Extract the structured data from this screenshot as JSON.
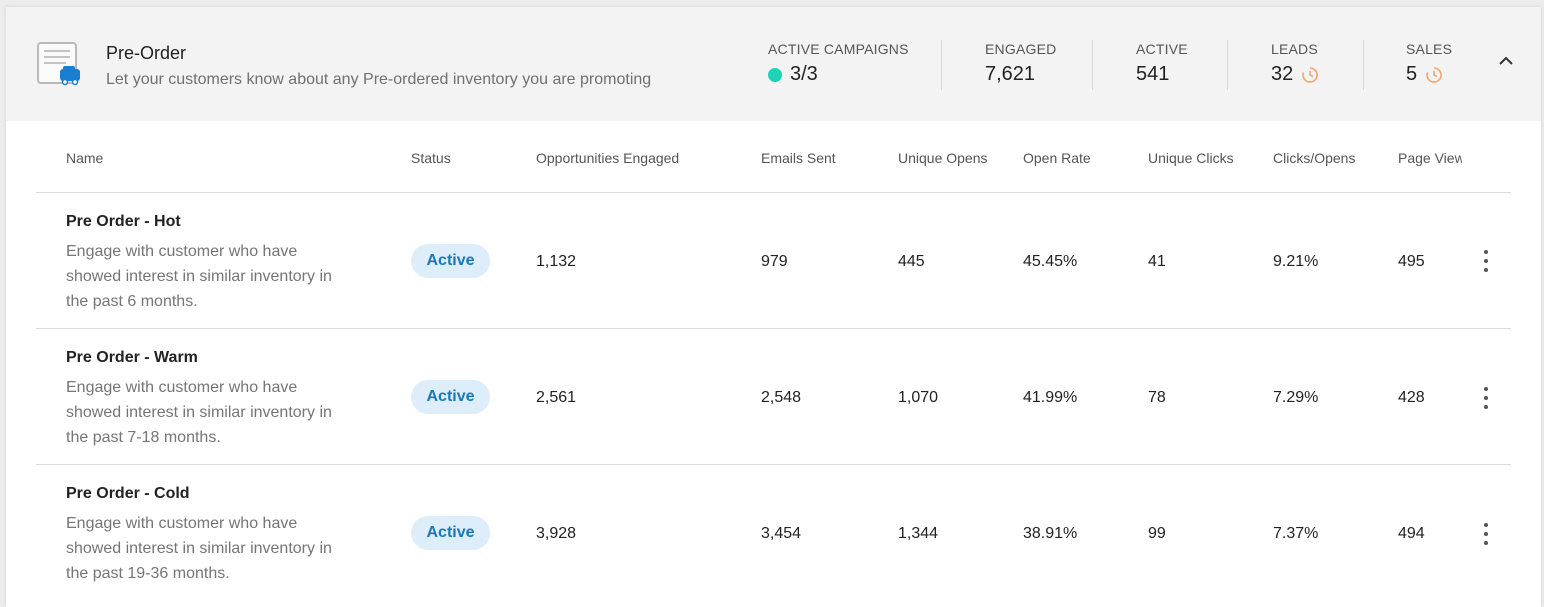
{
  "header": {
    "title": "Pre-Order",
    "subtitle": "Let your customers know about any Pre-ordered inventory you are promoting",
    "stats": {
      "active_campaigns": {
        "label": "ACTIVE CAMPAIGNS",
        "value": "3/3"
      },
      "engaged": {
        "label": "ENGAGED",
        "value": "7,621"
      },
      "active": {
        "label": "ACTIVE",
        "value": "541"
      },
      "leads": {
        "label": "LEADS",
        "value": "32"
      },
      "sales": {
        "label": "SALES",
        "value": "5"
      }
    }
  },
  "table": {
    "columns": [
      "Name",
      "Status",
      "Opportunities Engaged",
      "Emails Sent",
      "Unique Opens",
      "Open Rate",
      "Unique Clicks",
      "Clicks/Opens",
      "Page Views"
    ],
    "rows": [
      {
        "name": "Pre Order - Hot",
        "description": "Engage with customer who have showed interest in similar inventory in the past 6 months.",
        "status": "Active",
        "opportunities_engaged": "1,132",
        "emails_sent": "979",
        "unique_opens": "445",
        "open_rate": "45.45%",
        "unique_clicks": "41",
        "clicks_opens": "9.21%",
        "page_views": "495"
      },
      {
        "name": "Pre Order - Warm",
        "description": "Engage with customer who have showed interest in similar inventory in the past 7-18 months.",
        "status": "Active",
        "opportunities_engaged": "2,561",
        "emails_sent": "2,548",
        "unique_opens": "1,070",
        "open_rate": "41.99%",
        "unique_clicks": "78",
        "clicks_opens": "7.29%",
        "page_views": "428"
      },
      {
        "name": "Pre Order - Cold",
        "description": "Engage with customer who have showed interest in similar inventory in the past 19-36 months.",
        "status": "Active",
        "opportunities_engaged": "3,928",
        "emails_sent": "3,454",
        "unique_opens": "1,344",
        "open_rate": "38.91%",
        "unique_clicks": "99",
        "clicks_opens": "7.37%",
        "page_views": "494"
      }
    ]
  },
  "icons": {
    "document": "document-car-icon",
    "status_dot": "green-dot-icon",
    "clock": "clock-icon",
    "collapse": "chevron-up-icon",
    "more": "more-vertical-icon"
  },
  "colors": {
    "accent": "#1ed3b8",
    "badge_bg": "#ddeefa",
    "badge_text": "#1878b9",
    "clock": "#f4a46b",
    "header_bg": "#f3f3f3"
  }
}
